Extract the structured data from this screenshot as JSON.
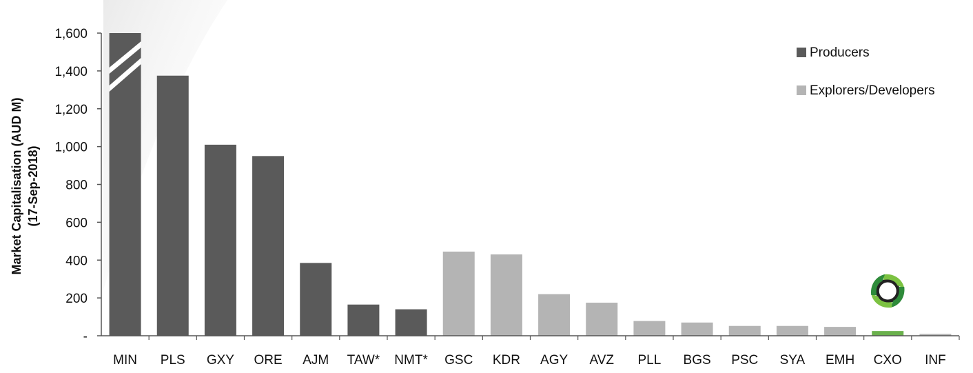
{
  "chart_data": {
    "type": "bar",
    "ylabel_lines": [
      "Market Capitalisation (AUD M)",
      "(17-Sep-2018)"
    ],
    "ylim": [
      0,
      1600
    ],
    "yticks": [
      {
        "value": 0,
        "label": "-"
      },
      {
        "value": 200,
        "label": "200"
      },
      {
        "value": 400,
        "label": "400"
      },
      {
        "value": 600,
        "label": "600"
      },
      {
        "value": 800,
        "label": "800"
      },
      {
        "value": 1000,
        "label": "1,000"
      },
      {
        "value": 1200,
        "label": "1,200"
      },
      {
        "value": 1400,
        "label": "1,400"
      },
      {
        "value": 1600,
        "label": "1,600"
      }
    ],
    "categories": [
      "MIN",
      "PLS",
      "GXY",
      "ORE",
      "AJM",
      "TAW*",
      "NMT*",
      "GSC",
      "KDR",
      "AGY",
      "AVZ",
      "PLL",
      "BGS",
      "PSC",
      "SYA",
      "EMH",
      "CXO",
      "INF"
    ],
    "values": [
      1600,
      1375,
      1010,
      950,
      385,
      165,
      140,
      445,
      430,
      220,
      175,
      78,
      70,
      52,
      52,
      47,
      25,
      10
    ],
    "groups": [
      "Producers",
      "Producers",
      "Producers",
      "Producers",
      "Producers",
      "Producers",
      "Producers",
      "Explorers/Developers",
      "Explorers/Developers",
      "Explorers/Developers",
      "Explorers/Developers",
      "Explorers/Developers",
      "Explorers/Developers",
      "Explorers/Developers",
      "Explorers/Developers",
      "Explorers/Developers",
      "Highlight",
      "Explorers/Developers"
    ],
    "axis_break_category": "MIN",
    "logo_category": "CXO",
    "legend": {
      "placement": "top-right",
      "entries": [
        {
          "name": "Producers",
          "color": "#5a5a5a"
        },
        {
          "name": "Explorers/Developers",
          "color": "#b4b4b4"
        }
      ]
    },
    "colors": {
      "Producers": "#5a5a5a",
      "Explorers/Developers": "#b4b4b4",
      "Highlight": "#6ab04c",
      "axis": "#555555"
    },
    "grid": false
  }
}
